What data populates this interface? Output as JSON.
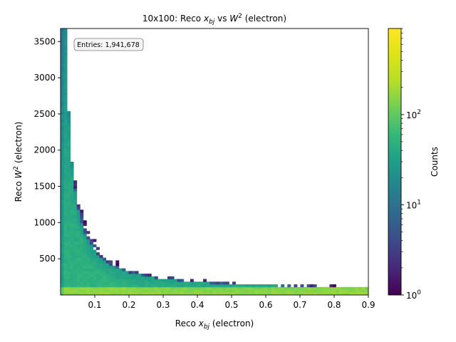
{
  "chart_data": {
    "type": "heatmap",
    "title": {
      "prefix": "10x100: Reco ",
      "x_sym": "x",
      "x_sub": "bj",
      "mid": " vs ",
      "w_sym": "W",
      "w_sup": "2",
      "suffix": " (electron)"
    },
    "xlabel": {
      "prefix": "Reco ",
      "sym": "x",
      "sub": "bj",
      "suffix": " (electron)"
    },
    "ylabel": {
      "prefix": "Reco ",
      "sym": "W",
      "sup": "2",
      "suffix": " (electron)"
    },
    "colorbar_label": "Counts",
    "annotation": "Entries: 1,941,678",
    "xlim": [
      0.0,
      0.9
    ],
    "ylim": [
      0,
      3680
    ],
    "x_ticks": [
      0.1,
      0.2,
      0.3,
      0.4,
      0.5,
      0.6,
      0.7,
      0.8,
      0.9
    ],
    "x_tick_labels": [
      "0.1",
      "0.2",
      "0.3",
      "0.4",
      "0.5",
      "0.6",
      "0.7",
      "0.8",
      "0.9"
    ],
    "y_ticks": [
      500,
      1000,
      1500,
      2000,
      2500,
      3000,
      3500
    ],
    "y_tick_labels": [
      "500",
      "1000",
      "1500",
      "2000",
      "2500",
      "3000",
      "3500"
    ],
    "colorbar": {
      "scale": "log",
      "colormap": "viridis",
      "range": [
        1,
        900
      ],
      "ticks": [
        1,
        10,
        100
      ],
      "tick_labels": [
        {
          "base": "10",
          "exp": "0"
        },
        {
          "base": "10",
          "exp": "1"
        },
        {
          "base": "10",
          "exp": "2"
        }
      ]
    },
    "grid": false,
    "colors": {
      "low": "#440154",
      "mid": "#21918c",
      "high": "#fde725"
    }
  }
}
